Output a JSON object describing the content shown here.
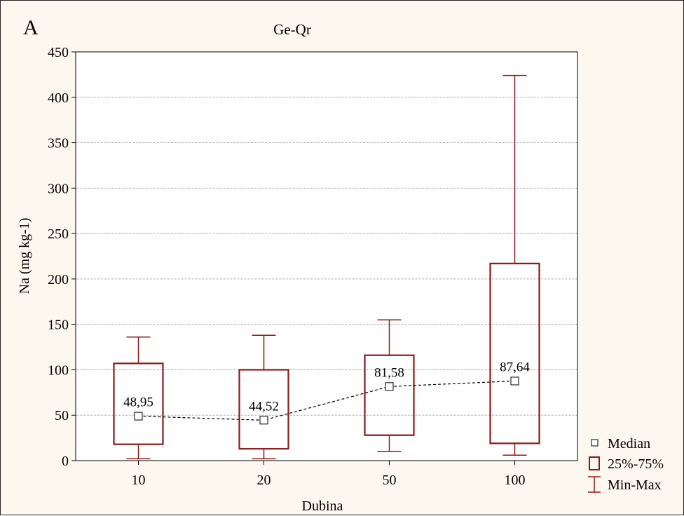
{
  "panel_letter": "A",
  "colors": {
    "box": "#8b1a1a",
    "median_line": "#000000",
    "grid": "#999999",
    "background": "#fdf8ef"
  },
  "chart_data": {
    "type": "box",
    "title": "Ge-Qr",
    "xlabel": "Dubina",
    "ylabel": "Na (mg kg-1)",
    "ylim": [
      0,
      450
    ],
    "yticks": [
      0,
      50,
      100,
      150,
      200,
      250,
      300,
      350,
      400,
      450
    ],
    "grid": true,
    "legend_position": "bottom-right",
    "categories": [
      "10",
      "20",
      "50",
      "100"
    ],
    "boxes": [
      {
        "category": "10",
        "min": 2,
        "q1": 18,
        "median": 48.95,
        "q3": 107,
        "max": 136,
        "median_label": "48,95"
      },
      {
        "category": "20",
        "min": 2,
        "q1": 13,
        "median": 44.52,
        "q3": 100,
        "max": 138,
        "median_label": "44,52"
      },
      {
        "category": "50",
        "min": 10,
        "q1": 28,
        "median": 81.58,
        "q3": 116,
        "max": 155,
        "median_label": "81,58"
      },
      {
        "category": "100",
        "min": 6,
        "q1": 19,
        "median": 87.64,
        "q3": 217,
        "max": 424,
        "median_label": "87,64"
      }
    ],
    "legend": [
      {
        "key": "median",
        "label": "Median"
      },
      {
        "key": "box",
        "label": "25%-75%"
      },
      {
        "key": "whisker",
        "label": "Min-Max"
      }
    ]
  }
}
